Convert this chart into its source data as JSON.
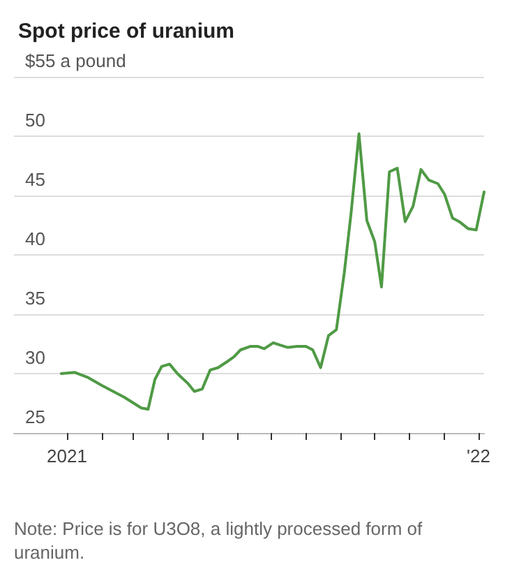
{
  "chart_data": {
    "type": "line",
    "title": "Spot price of uranium",
    "annotations": [
      "Note: Price is for U3O8, a lightly processed form of uranium."
    ],
    "x": [
      "2020-12-27",
      "2021-01-08",
      "2021-01-19",
      "2021-02-01",
      "2021-02-11",
      "2021-02-21",
      "2021-03-08",
      "2021-03-14",
      "2021-03-20",
      "2021-03-26",
      "2021-04-02",
      "2021-04-09",
      "2021-04-18",
      "2021-04-24",
      "2021-05-01",
      "2021-05-08",
      "2021-05-15",
      "2021-05-23",
      "2021-05-29",
      "2021-06-04",
      "2021-06-13",
      "2021-06-19",
      "2021-06-25",
      "2021-07-03",
      "2021-07-09",
      "2021-07-16",
      "2021-07-24",
      "2021-08-01",
      "2021-08-07",
      "2021-08-14",
      "2021-08-21",
      "2021-08-28",
      "2021-09-04",
      "2021-09-10",
      "2021-09-17",
      "2021-09-24",
      "2021-10-01",
      "2021-10-07",
      "2021-10-14",
      "2021-10-21",
      "2021-10-28",
      "2021-11-04",
      "2021-11-11",
      "2021-11-18",
      "2021-11-26",
      "2021-12-02",
      "2021-12-09",
      "2021-12-15",
      "2021-12-23",
      "2021-12-30",
      "2022-01-06"
    ],
    "series": [
      {
        "color": "#4f9a45",
        "values": [
          30.0,
          30.1,
          29.7,
          29.0,
          28.5,
          28.0,
          27.1,
          27.0,
          29.5,
          30.6,
          30.8,
          30.0,
          29.2,
          28.5,
          28.7,
          30.3,
          30.5,
          31.0,
          31.4,
          32.0,
          32.3,
          32.3,
          32.1,
          32.6,
          32.4,
          32.2,
          32.3,
          32.3,
          32.0,
          30.5,
          33.2,
          33.7,
          38.5,
          43.5,
          50.2,
          42.9,
          41.1,
          37.3,
          47.0,
          47.3,
          42.8,
          44.1,
          47.2,
          46.3,
          46.0,
          45.1,
          43.1,
          42.8,
          42.2,
          42.1,
          45.3
        ]
      }
    ],
    "xlim": [
      "2020-11-15",
      "2022-01-06"
    ],
    "xticks": [
      {
        "value": "2021-01-01",
        "label": "2021"
      },
      {
        "value": "2021-02-01",
        "label": null
      },
      {
        "value": "2021-03-01",
        "label": null
      },
      {
        "value": "2021-04-01",
        "label": null
      },
      {
        "value": "2021-05-01",
        "label": null
      },
      {
        "value": "2021-06-01",
        "label": null
      },
      {
        "value": "2021-07-01",
        "label": null
      },
      {
        "value": "2021-08-01",
        "label": null
      },
      {
        "value": "2021-09-01",
        "label": null
      },
      {
        "value": "2021-10-01",
        "label": null
      },
      {
        "value": "2021-11-01",
        "label": null
      },
      {
        "value": "2021-12-01",
        "label": null
      },
      {
        "value": "2022-01-01",
        "label": "'22"
      }
    ],
    "ylim": [
      25,
      55
    ],
    "yticks": [
      25,
      30,
      35,
      40,
      45,
      50,
      {
        "value": 55,
        "label": "$55 a pound"
      }
    ],
    "grid": "y",
    "marker": "none",
    "line_style": "solid"
  }
}
